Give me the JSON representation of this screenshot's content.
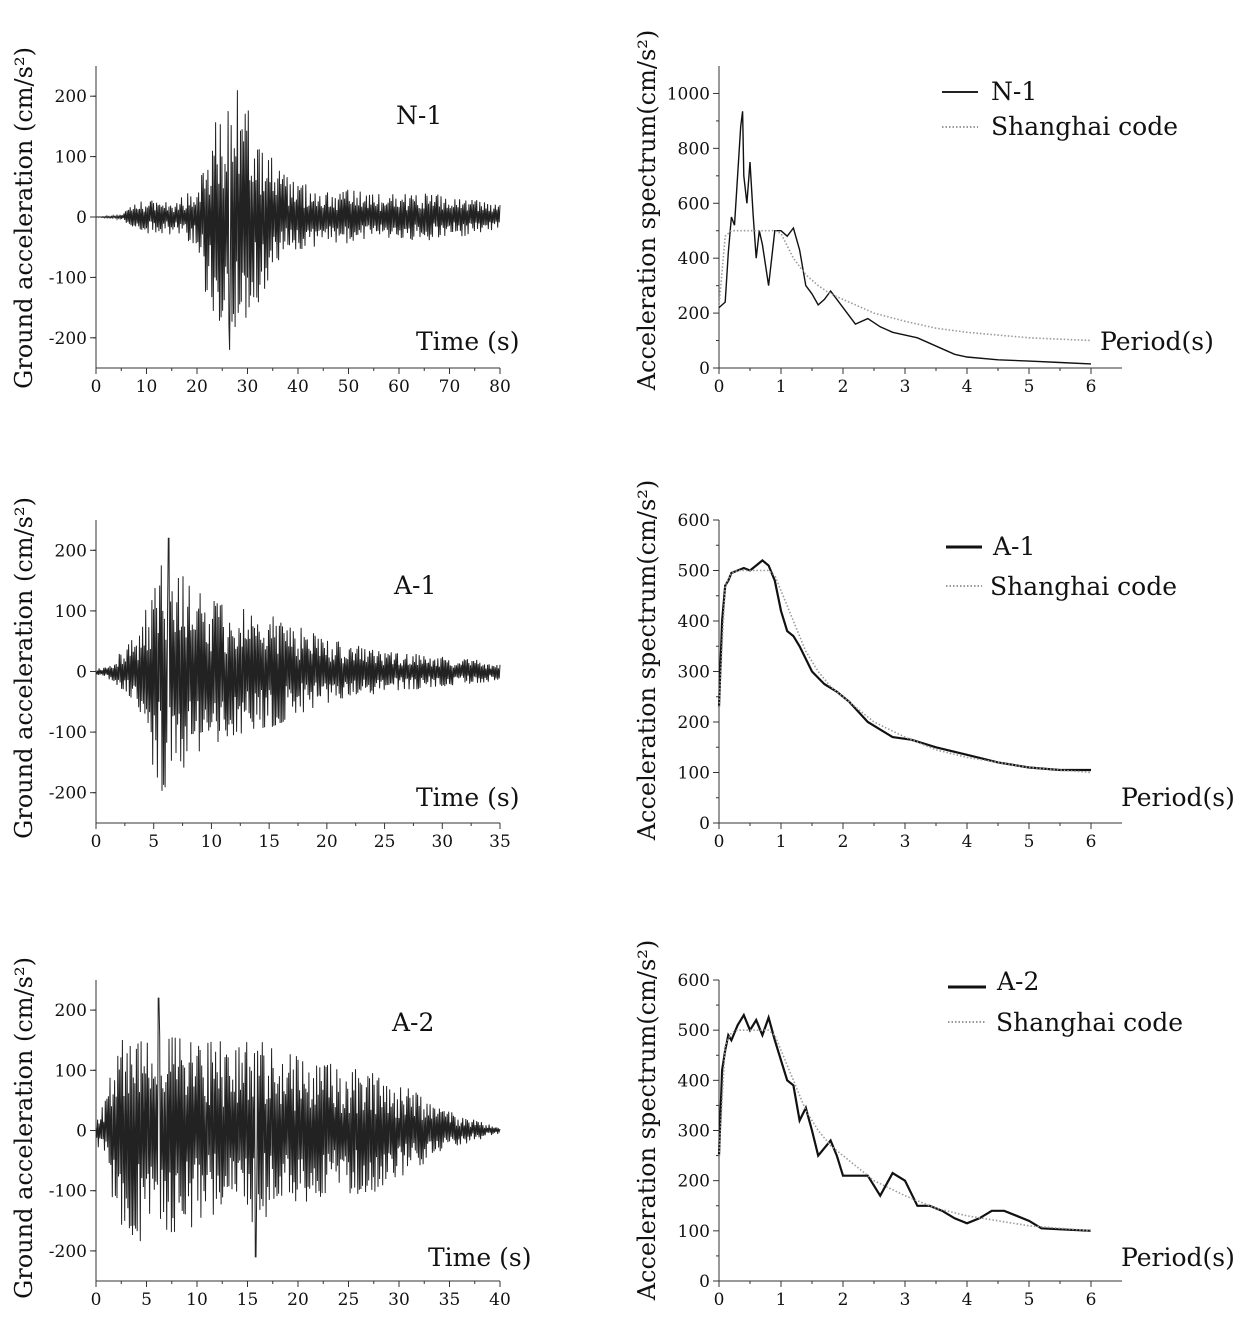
{
  "figure": {
    "left_column": {
      "ylabel": "Ground acceleration (cm/s²)",
      "xlabel": "Time (s)"
    },
    "right_column": {
      "ylabel": "Acceleration spectrum(cm/s²)",
      "xlabel": "Period(s)",
      "reference_series": "Shanghai code"
    }
  },
  "chart_data": [
    {
      "type": "line",
      "id": "n1-time-history",
      "annotation": "N-1",
      "xlabel": "Time (s)",
      "ylabel": "Ground acceleration (cm/s²)",
      "xlim": [
        0,
        80
      ],
      "ylim": [
        -250,
        250
      ],
      "xticks": [
        0,
        10,
        20,
        30,
        40,
        50,
        60,
        70,
        80
      ],
      "yticks": [
        -200,
        -100,
        0,
        100,
        200
      ],
      "envelope": {
        "t": [
          0,
          5,
          8,
          12,
          16,
          20,
          22,
          25,
          27,
          28,
          30,
          33,
          36,
          40,
          45,
          50,
          55,
          60,
          65,
          70,
          75,
          80
        ],
        "amplitude": [
          0,
          4,
          25,
          30,
          30,
          50,
          140,
          180,
          200,
          210,
          180,
          140,
          80,
          60,
          45,
          45,
          40,
          40,
          40,
          35,
          30,
          20
        ]
      },
      "peaks": {
        "max": 210,
        "min": -220,
        "t_max": 28,
        "t_min": 26.5
      }
    },
    {
      "type": "line",
      "id": "n1-spectrum",
      "xlabel": "Period(s)",
      "ylabel": "Acceleration spectrum(cm/s²)",
      "xlim": [
        0,
        6.5
      ],
      "ylim": [
        0,
        1100
      ],
      "xticks": [
        0,
        1,
        2,
        3,
        4,
        5,
        6
      ],
      "yticks": [
        0,
        200,
        400,
        600,
        800,
        1000
      ],
      "legend_position": "top-right",
      "series": [
        {
          "name": "N-1",
          "style": "solid",
          "x": [
            0,
            0.05,
            0.1,
            0.15,
            0.2,
            0.25,
            0.3,
            0.35,
            0.38,
            0.4,
            0.45,
            0.5,
            0.55,
            0.6,
            0.65,
            0.7,
            0.8,
            0.9,
            1.0,
            1.1,
            1.2,
            1.3,
            1.4,
            1.5,
            1.6,
            1.7,
            1.8,
            2.0,
            2.2,
            2.4,
            2.6,
            2.8,
            3.0,
            3.2,
            3.4,
            3.6,
            3.8,
            4.0,
            4.5,
            5.0,
            5.5,
            6.0
          ],
          "y": [
            220,
            230,
            240,
            420,
            550,
            520,
            700,
            880,
            935,
            700,
            600,
            750,
            560,
            400,
            500,
            450,
            300,
            500,
            500,
            480,
            510,
            430,
            300,
            270,
            230,
            250,
            280,
            220,
            160,
            180,
            150,
            130,
            120,
            110,
            90,
            70,
            50,
            40,
            30,
            25,
            20,
            15
          ]
        },
        {
          "name": "Shanghai code",
          "style": "dotted",
          "x": [
            0,
            0.1,
            0.2,
            0.3,
            0.4,
            0.5,
            0.6,
            0.7,
            0.8,
            0.9,
            1.0,
            1.2,
            1.4,
            1.6,
            1.8,
            2.0,
            2.5,
            3.0,
            3.5,
            4.0,
            4.5,
            5.0,
            5.5,
            6.0
          ],
          "y": [
            225,
            480,
            500,
            500,
            500,
            500,
            500,
            500,
            500,
            500,
            490,
            400,
            340,
            300,
            270,
            250,
            200,
            170,
            145,
            130,
            120,
            110,
            105,
            100
          ]
        }
      ]
    },
    {
      "type": "line",
      "id": "a1-time-history",
      "annotation": "A-1",
      "xlabel": "Time (s)",
      "ylabel": "Ground acceleration (cm/s²)",
      "xlim": [
        0,
        35
      ],
      "ylim": [
        -250,
        250
      ],
      "xticks": [
        0,
        5,
        10,
        15,
        20,
        25,
        30,
        35
      ],
      "yticks": [
        -200,
        -100,
        0,
        100,
        200
      ],
      "envelope": {
        "t": [
          0,
          1,
          2,
          3,
          4,
          5,
          6,
          7,
          8,
          10,
          12,
          14,
          16,
          18,
          20,
          22,
          25,
          28,
          30,
          33,
          35
        ],
        "amplitude": [
          5,
          10,
          30,
          50,
          80,
          170,
          210,
          180,
          150,
          120,
          110,
          100,
          90,
          70,
          55,
          45,
          35,
          30,
          25,
          20,
          15
        ]
      },
      "peaks": {
        "max": 220,
        "min": -175,
        "t_max": 6.3,
        "t_min": 5.3
      }
    },
    {
      "type": "line",
      "id": "a1-spectrum",
      "xlabel": "Period(s)",
      "ylabel": "Acceleration spectrum(cm/s²)",
      "xlim": [
        0,
        6.5
      ],
      "ylim": [
        0,
        600
      ],
      "xticks": [
        0,
        1,
        2,
        3,
        4,
        5,
        6
      ],
      "yticks": [
        0,
        100,
        200,
        300,
        400,
        500,
        600
      ],
      "legend_position": "top-right",
      "series": [
        {
          "name": "A-1",
          "style": "solid",
          "x": [
            0,
            0.05,
            0.1,
            0.15,
            0.2,
            0.3,
            0.4,
            0.5,
            0.6,
            0.7,
            0.8,
            0.9,
            1.0,
            1.1,
            1.2,
            1.3,
            1.5,
            1.7,
            1.9,
            2.1,
            2.4,
            2.8,
            3.1,
            3.5,
            4.0,
            4.5,
            5.0,
            5.5,
            6.0
          ],
          "y": [
            230,
            400,
            470,
            480,
            495,
            500,
            505,
            500,
            510,
            520,
            510,
            480,
            420,
            380,
            370,
            350,
            300,
            275,
            260,
            240,
            200,
            170,
            165,
            150,
            135,
            120,
            110,
            105,
            105
          ]
        },
        {
          "name": "Shanghai code",
          "style": "dotted",
          "x": [
            0,
            0.1,
            0.2,
            0.3,
            0.4,
            0.5,
            0.6,
            0.7,
            0.8,
            0.9,
            1.0,
            1.2,
            1.4,
            1.6,
            1.8,
            2.0,
            2.5,
            3.0,
            3.5,
            4.0,
            4.5,
            5.0,
            5.5,
            6.0
          ],
          "y": [
            230,
            470,
            495,
            500,
            500,
            500,
            500,
            500,
            500,
            490,
            460,
            400,
            340,
            300,
            270,
            250,
            200,
            170,
            145,
            130,
            120,
            110,
            105,
            100
          ]
        }
      ]
    },
    {
      "type": "line",
      "id": "a2-time-history",
      "annotation": "A-2",
      "xlabel": "Time (s)",
      "ylabel": "Ground acceleration (cm/s²)",
      "xlim": [
        0,
        40
      ],
      "ylim": [
        -250,
        250
      ],
      "xticks": [
        0,
        5,
        10,
        15,
        20,
        25,
        30,
        35,
        40
      ],
      "yticks": [
        -200,
        -100,
        0,
        100,
        200
      ],
      "envelope": {
        "t": [
          0,
          1,
          2,
          4,
          6,
          8,
          10,
          12,
          14,
          16,
          18,
          20,
          22,
          24,
          26,
          28,
          30,
          32,
          34,
          36,
          38,
          40
        ],
        "amplitude": [
          20,
          60,
          150,
          180,
          200,
          170,
          160,
          150,
          140,
          160,
          130,
          130,
          120,
          110,
          110,
          100,
          80,
          60,
          40,
          25,
          15,
          5
        ]
      },
      "peaks": {
        "max": 220,
        "min": -210,
        "t_max": 6.2,
        "t_min": 15.8
      }
    },
    {
      "type": "line",
      "id": "a2-spectrum",
      "xlabel": "Period(s)",
      "ylabel": "Acceleration spectrum(cm/s²)",
      "xlim": [
        0,
        6.5
      ],
      "ylim": [
        0,
        600
      ],
      "xticks": [
        0,
        1,
        2,
        3,
        4,
        5,
        6
      ],
      "yticks": [
        0,
        100,
        200,
        300,
        400,
        500,
        600
      ],
      "legend_position": "top-right",
      "series": [
        {
          "name": "A-2",
          "style": "solid",
          "x": [
            0,
            0.05,
            0.1,
            0.15,
            0.2,
            0.3,
            0.4,
            0.5,
            0.6,
            0.7,
            0.8,
            0.9,
            1.0,
            1.1,
            1.2,
            1.3,
            1.4,
            1.5,
            1.6,
            1.7,
            1.8,
            1.9,
            2.0,
            2.2,
            2.4,
            2.6,
            2.8,
            3.0,
            3.2,
            3.4,
            3.6,
            3.8,
            4.0,
            4.2,
            4.4,
            4.6,
            4.8,
            5.0,
            5.2,
            5.5,
            6.0
          ],
          "y": [
            250,
            420,
            460,
            490,
            480,
            510,
            530,
            500,
            520,
            490,
            525,
            480,
            440,
            400,
            390,
            320,
            345,
            300,
            250,
            265,
            280,
            250,
            210,
            210,
            210,
            170,
            215,
            200,
            150,
            150,
            140,
            125,
            115,
            125,
            140,
            140,
            130,
            120,
            105,
            103,
            100
          ]
        },
        {
          "name": "Shanghai code",
          "style": "dotted",
          "x": [
            0,
            0.1,
            0.2,
            0.3,
            0.4,
            0.5,
            0.6,
            0.7,
            0.8,
            0.9,
            1.0,
            1.2,
            1.4,
            1.6,
            1.8,
            2.0,
            2.5,
            3.0,
            3.5,
            4.0,
            4.5,
            5.0,
            5.5,
            6.0
          ],
          "y": [
            250,
            470,
            495,
            500,
            500,
            500,
            500,
            500,
            500,
            490,
            460,
            400,
            340,
            300,
            270,
            250,
            200,
            170,
            145,
            130,
            120,
            110,
            105,
            100
          ]
        }
      ]
    }
  ]
}
